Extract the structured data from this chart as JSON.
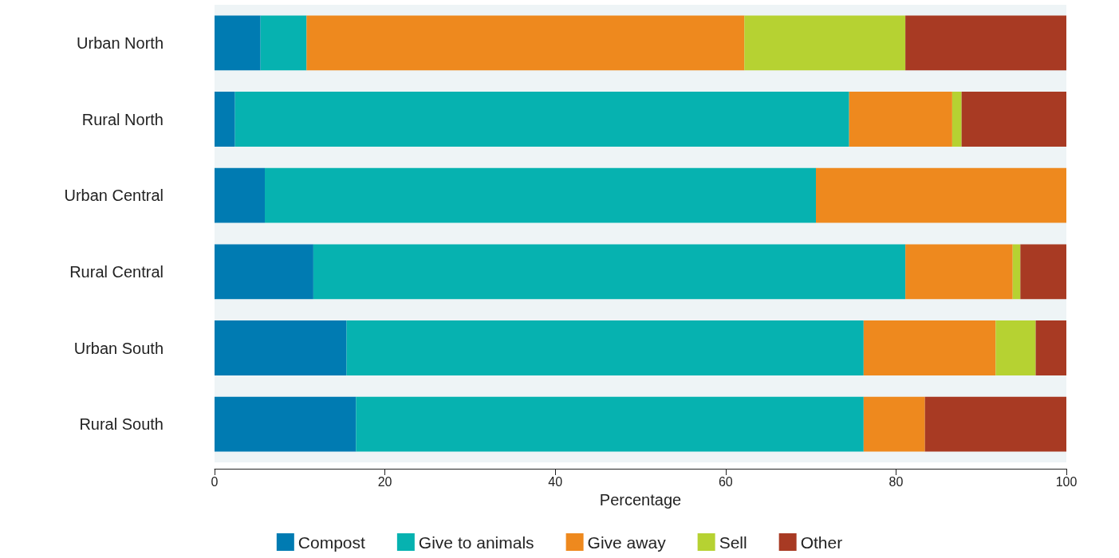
{
  "chart_data": {
    "type": "bar",
    "orientation": "horizontal",
    "stacked": true,
    "xlabel": "Percentage",
    "categories": [
      "Urban North",
      "Rural North",
      "Urban Central",
      "Rural Central",
      "Urban South",
      "Rural South"
    ],
    "series": [
      {
        "name": "Compost",
        "color": "#007bb2",
        "values": [
          5.4,
          2.4,
          5.9,
          11.6,
          15.5,
          16.6
        ]
      },
      {
        "name": "Give to animals",
        "color": "#06b2b0",
        "values": [
          5.4,
          72.1,
          64.7,
          69.5,
          60.7,
          59.6
        ]
      },
      {
        "name": "Give away",
        "color": "#ee891e",
        "values": [
          51.4,
          12.1,
          29.4,
          12.6,
          15.5,
          7.2
        ]
      },
      {
        "name": "Sell",
        "color": "#b6d232",
        "values": [
          18.9,
          1.1,
          0,
          0.9,
          4.7,
          0
        ]
      },
      {
        "name": "Other",
        "color": "#a83a23",
        "values": [
          18.9,
          12.3,
          0,
          5.4,
          3.6,
          16.6
        ]
      }
    ],
    "xlim": [
      0,
      100
    ],
    "xticks": [
      0,
      20,
      40,
      60,
      80,
      100
    ],
    "grid": false,
    "legend": "bottom"
  }
}
